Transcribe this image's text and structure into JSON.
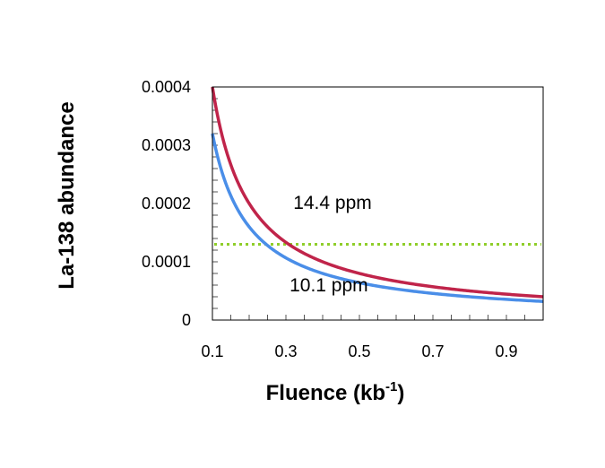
{
  "chart_data": {
    "type": "line",
    "title": "",
    "xlabel": "Fluence (kb",
    "xlabel_sup": "-1",
    "xlabel_tail": ")",
    "ylabel": "La-138 abundance",
    "xlim": [
      0.1,
      1.0
    ],
    "ylim": [
      0,
      0.0004
    ],
    "x_ticks": [
      0.1,
      0.3,
      0.5,
      0.7,
      0.9
    ],
    "x_tick_labels": [
      "0.1",
      "0.3",
      "0.5",
      "0.7",
      "0.9"
    ],
    "y_ticks": [
      0,
      0.0001,
      0.0002,
      0.0003,
      0.0004
    ],
    "y_tick_labels": [
      "0",
      "0.0001",
      "0.0002",
      "0.0003",
      "0.0004"
    ],
    "x_minor_step": 0.05,
    "y_minor_step": 2e-05,
    "series": [
      {
        "name": "14.4 ppm",
        "color": "#c0244a",
        "x": [
          0.1,
          0.15,
          0.2,
          0.25,
          0.3,
          0.35,
          0.4,
          0.45,
          0.5,
          0.55,
          0.6,
          0.65,
          0.7,
          0.75,
          0.8,
          0.85,
          0.9,
          0.95,
          1.0
        ],
        "values": [
          0.0004,
          0.000267,
          0.0002,
          0.00016,
          0.000133,
          0.000114,
          0.0001,
          8.89e-05,
          8e-05,
          7.27e-05,
          6.67e-05,
          6.15e-05,
          5.71e-05,
          5.33e-05,
          5e-05,
          4.71e-05,
          4.44e-05,
          4.21e-05,
          4e-05
        ]
      },
      {
        "name": "10.1 ppm",
        "color": "#4a8ee8",
        "x": [
          0.1,
          0.15,
          0.2,
          0.25,
          0.3,
          0.35,
          0.4,
          0.45,
          0.5,
          0.55,
          0.6,
          0.65,
          0.7,
          0.75,
          0.8,
          0.85,
          0.9,
          0.95,
          1.0
        ],
        "values": [
          0.00032,
          0.000213,
          0.00016,
          0.000128,
          0.000107,
          9.14e-05,
          8e-05,
          7.11e-05,
          6.4e-05,
          5.82e-05,
          5.33e-05,
          4.92e-05,
          4.57e-05,
          4.27e-05,
          4e-05,
          3.76e-05,
          3.56e-05,
          3.37e-05,
          3.2e-05
        ]
      }
    ],
    "reference_line": {
      "y": 0.00013,
      "color": "#8fce2a",
      "style": "dotted"
    },
    "annotations": [
      {
        "text": "14.4 ppm",
        "x": 0.32,
        "y": 0.000191
      },
      {
        "text": "10.1 ppm",
        "x": 0.31,
        "y": 4.95e-05
      }
    ],
    "grid": false,
    "legend": "none"
  }
}
